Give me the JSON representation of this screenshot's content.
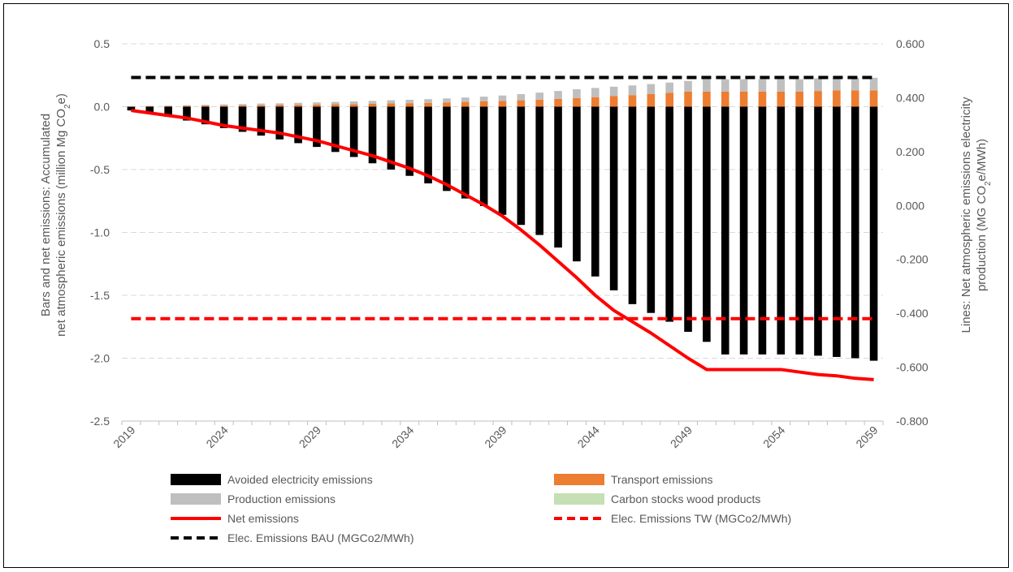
{
  "chart_data": {
    "type": "bar",
    "stacked": true,
    "grid": true,
    "legend_position": "bottom",
    "x": {
      "categories": [
        2019,
        2020,
        2021,
        2022,
        2023,
        2024,
        2025,
        2026,
        2027,
        2028,
        2029,
        2030,
        2031,
        2032,
        2033,
        2034,
        2035,
        2036,
        2037,
        2038,
        2039,
        2040,
        2041,
        2042,
        2043,
        2044,
        2045,
        2046,
        2047,
        2048,
        2049,
        2050,
        2051,
        2052,
        2053,
        2054,
        2055,
        2056,
        2057,
        2058,
        2059
      ],
      "tick_labels": [
        "2019",
        "2024",
        "2029",
        "2034",
        "2039",
        "2044",
        "2049",
        "2054",
        "2059"
      ]
    },
    "y_left": {
      "label_line1": "Bars and net emissions: Accumulated",
      "label_line2_pre": "net atmospheric emissions (million Mg CO",
      "label_sub": "2",
      "label_post": "e)",
      "ylim": [
        -2.5,
        0.5
      ],
      "ticks": [
        "0.5",
        "0.0",
        "-0.5",
        "-1.0",
        "-1.5",
        "-2.0",
        "-2.5"
      ],
      "tick_values": [
        0.5,
        0,
        -0.5,
        -1,
        -1.5,
        -2,
        -2.5
      ]
    },
    "y_right": {
      "label_line1": "Lines: Net atmospheric emissions electricity",
      "label_line2_pre": "production (MG CO",
      "label_sub": "2",
      "label_post": "e/MWh)",
      "ylim": [
        -0.8,
        0.6
      ],
      "ticks": [
        "0.600",
        "0.400",
        "0.200",
        "0.000",
        "-0.200",
        "-0.400",
        "-0.600",
        "-0.800"
      ],
      "tick_values": [
        0.6,
        0.4,
        0.2,
        0,
        -0.2,
        -0.4,
        -0.6,
        -0.8
      ]
    },
    "series": [
      {
        "name": "Avoided electricity emissions",
        "type": "bar",
        "axis": "left",
        "color": "#000000",
        "values": [
          -0.03,
          -0.05,
          -0.08,
          -0.11,
          -0.14,
          -0.17,
          -0.2,
          -0.23,
          -0.26,
          -0.29,
          -0.32,
          -0.36,
          -0.4,
          -0.45,
          -0.5,
          -0.55,
          -0.61,
          -0.67,
          -0.73,
          -0.79,
          -0.86,
          -0.94,
          -1.02,
          -1.12,
          -1.23,
          -1.35,
          -1.46,
          -1.57,
          -1.64,
          -1.71,
          -1.79,
          -1.87,
          -1.97,
          -1.97,
          -1.97,
          -1.97,
          -1.97,
          -1.98,
          -1.99,
          -2.0,
          -2.02
        ]
      },
      {
        "name": "Transport emissions",
        "type": "bar",
        "axis": "left",
        "color": "#ed7d31",
        "values": [
          0.002,
          0.003,
          0.004,
          0.006,
          0.007,
          0.008,
          0.01,
          0.012,
          0.013,
          0.015,
          0.017,
          0.019,
          0.021,
          0.023,
          0.026,
          0.028,
          0.031,
          0.034,
          0.038,
          0.042,
          0.046,
          0.051,
          0.056,
          0.062,
          0.069,
          0.076,
          0.084,
          0.092,
          0.1,
          0.11,
          0.12,
          0.12,
          0.12,
          0.12,
          0.12,
          0.12,
          0.12,
          0.125,
          0.13,
          0.13,
          0.13
        ]
      },
      {
        "name": "Production emissions",
        "type": "bar",
        "axis": "left",
        "color": "#bfbfbf",
        "values": [
          0.003,
          0.004,
          0.005,
          0.006,
          0.008,
          0.01,
          0.011,
          0.013,
          0.014,
          0.016,
          0.017,
          0.019,
          0.021,
          0.023,
          0.025,
          0.027,
          0.029,
          0.032,
          0.035,
          0.038,
          0.043,
          0.049,
          0.056,
          0.063,
          0.07,
          0.073,
          0.075,
          0.077,
          0.08,
          0.082,
          0.085,
          0.098,
          0.098,
          0.098,
          0.098,
          0.098,
          0.098,
          0.1,
          0.1,
          0.1,
          0.1
        ]
      },
      {
        "name": "Carbon stocks wood products",
        "type": "bar",
        "axis": "left",
        "color": "#c5e0b4",
        "values": [
          0,
          0,
          0,
          0,
          0,
          0,
          0,
          0,
          0,
          0,
          0,
          0,
          0,
          0,
          0,
          0,
          0,
          0,
          0,
          0,
          0,
          0,
          0,
          0,
          0,
          0,
          0,
          0,
          0,
          0,
          0,
          0,
          0,
          0,
          0,
          0,
          0,
          0,
          0,
          0,
          0
        ]
      },
      {
        "name": "Net emissions",
        "type": "line",
        "axis": "left",
        "color": "#ff0000",
        "dash": "solid",
        "values": [
          -0.03,
          -0.05,
          -0.07,
          -0.09,
          -0.12,
          -0.15,
          -0.17,
          -0.19,
          -0.21,
          -0.24,
          -0.27,
          -0.31,
          -0.35,
          -0.39,
          -0.44,
          -0.49,
          -0.55,
          -0.62,
          -0.7,
          -0.78,
          -0.87,
          -0.98,
          -1.1,
          -1.23,
          -1.36,
          -1.5,
          -1.62,
          -1.71,
          -1.8,
          -1.9,
          -2.0,
          -2.09,
          -2.09,
          -2.09,
          -2.09,
          -2.09,
          -2.11,
          -2.13,
          -2.14,
          -2.16,
          -2.17
        ]
      },
      {
        "name": "Elec. Emissions TW (MGCo2/MWh)",
        "type": "line",
        "axis": "right",
        "color": "#ff0000",
        "dash": "dashed",
        "values": [
          -0.42,
          -0.42
        ]
      },
      {
        "name": "Elec. Emissions BAU (MGCo2/MWh)",
        "type": "line",
        "axis": "right",
        "color": "#000000",
        "dash": "dashed",
        "values": [
          0.475,
          0.475
        ]
      }
    ],
    "legend": [
      {
        "label": "Avoided electricity emissions",
        "color": "#000000",
        "kind": "box"
      },
      {
        "label": "Transport emissions",
        "color": "#ed7d31",
        "kind": "box"
      },
      {
        "label": "Production emissions",
        "color": "#bfbfbf",
        "kind": "box"
      },
      {
        "label": "Carbon stocks wood products",
        "color": "#c5e0b4",
        "kind": "box"
      },
      {
        "label": "Net emissions",
        "color": "#ff0000",
        "kind": "line"
      },
      {
        "label": "Elec. Emissions TW (MGCo2/MWh)",
        "color": "#ff0000",
        "kind": "dash"
      },
      {
        "label": "Elec. Emissions BAU (MGCo2/MWh)",
        "color": "#000000",
        "kind": "dash"
      }
    ]
  }
}
